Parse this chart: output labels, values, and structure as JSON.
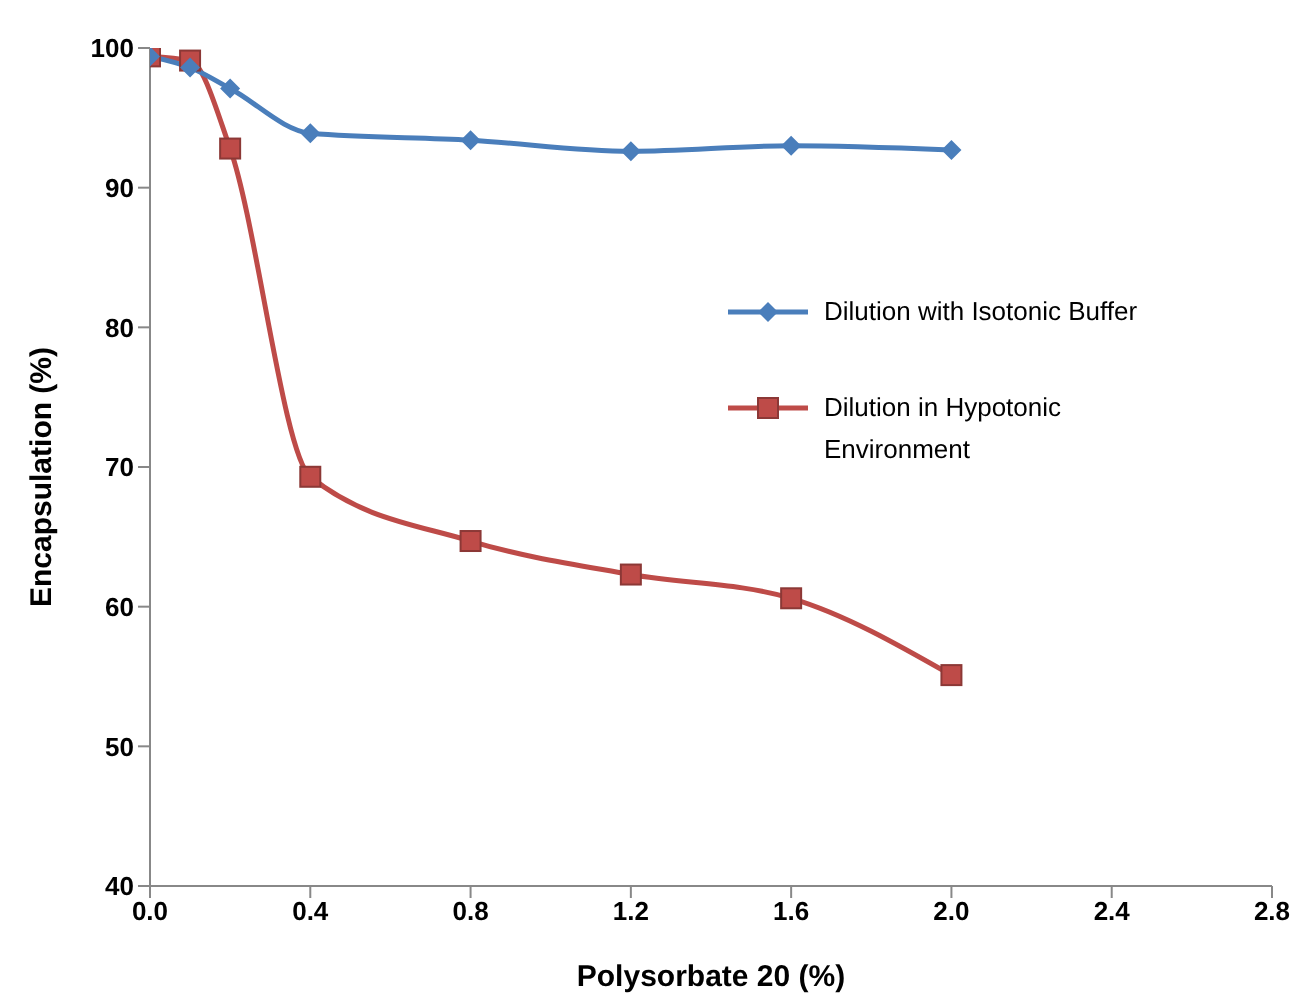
{
  "chart_data": {
    "type": "line",
    "xlabel": "Polysorbate 20 (%)",
    "ylabel": "Encapsulation (%)",
    "x": [
      0,
      0.1,
      0.2,
      0.4,
      0.8,
      1.2,
      1.6,
      2.0
    ],
    "series": [
      {
        "name": "Dilution with Isotonic Buffer",
        "color": "#4a7ebb",
        "marker": "diamond",
        "values": [
          99.4,
          98.6,
          97.1,
          93.9,
          93.4,
          92.6,
          93.0,
          92.7
        ]
      },
      {
        "name": "Dilution in Hypotonic Environment",
        "color": "#be4b48",
        "marker": "square",
        "values": [
          99.4,
          99.1,
          92.8,
          69.3,
          64.7,
          62.3,
          60.6,
          55.1
        ]
      }
    ],
    "xlim": [
      0,
      2.8
    ],
    "xticks": [
      {
        "value": 0,
        "label": "0.0"
      },
      0.4,
      0.8,
      1.2,
      1.6,
      {
        "value": 2,
        "label": "2.0"
      },
      2.4,
      2.8
    ],
    "ylim": [
      40,
      100
    ],
    "yticks": [
      40,
      50,
      60,
      70,
      80,
      90,
      100
    ],
    "grid": false,
    "legend": "right"
  }
}
